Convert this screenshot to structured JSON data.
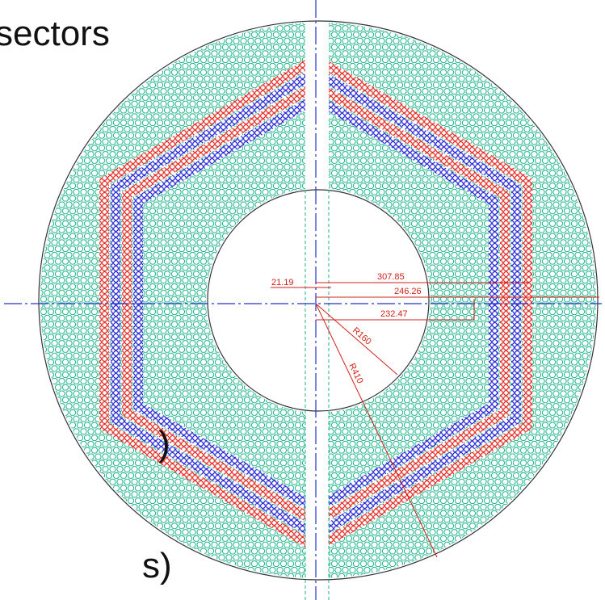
{
  "texts": {
    "heading": "sectors",
    "line1": ")",
    "line2": "s)"
  },
  "dimensions": {
    "d1": "307.85",
    "d2": "246.26",
    "d3": "21.19",
    "d4": "232.47",
    "r1": "R160",
    "r2": "R410"
  }
}
